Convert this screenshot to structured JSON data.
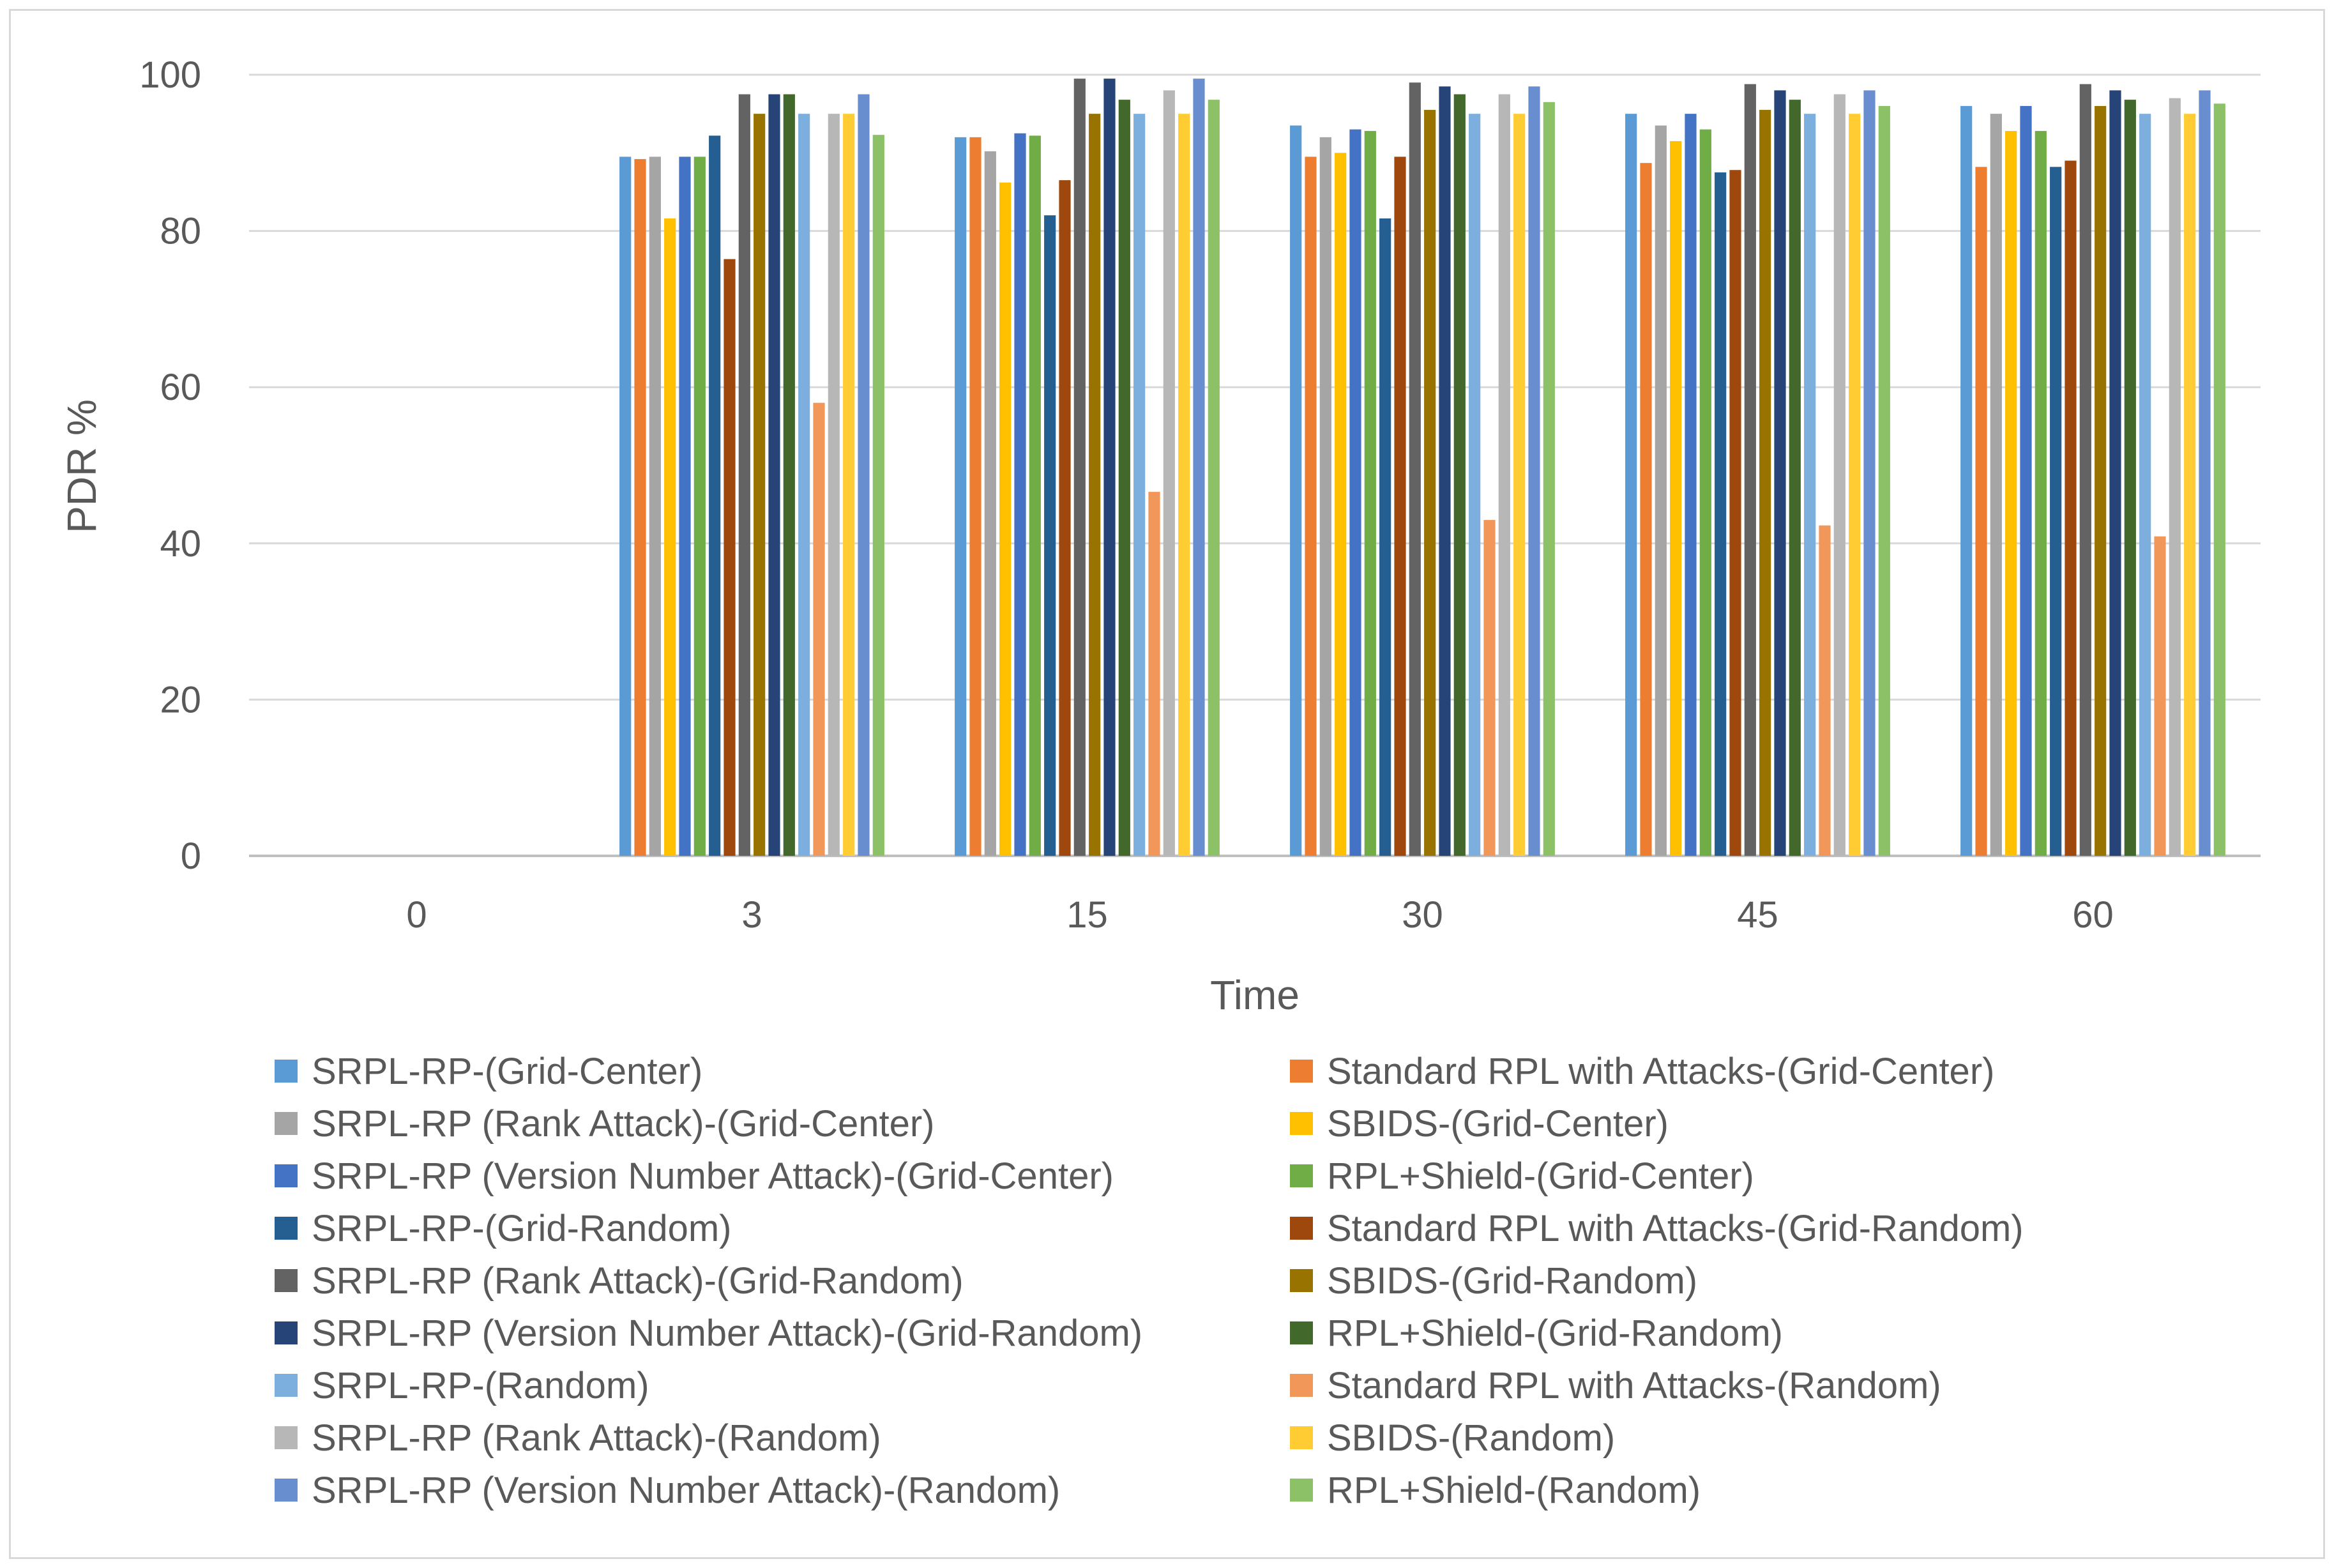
{
  "chart_data": {
    "type": "bar",
    "title": "",
    "xlabel": "Time",
    "ylabel": "PDR %",
    "ylim": [
      0,
      100
    ],
    "yticks": [
      0,
      20,
      40,
      60,
      80,
      100
    ],
    "categories": [
      "0",
      "3",
      "15",
      "30",
      "45",
      "60"
    ],
    "legend_position": "bottom",
    "grid": true,
    "series": [
      {
        "name": "SRPL-RP-(Grid-Center)",
        "color": "#5b9bd5",
        "values": [
          0,
          89.5,
          92,
          93.5,
          95,
          96
        ]
      },
      {
        "name": "Standard RPL with Attacks-(Grid-Center)",
        "color": "#ed7d31",
        "values": [
          0,
          89.2,
          92,
          89.5,
          88.7,
          88.2
        ]
      },
      {
        "name": "SRPL-RP (Rank Attack)-(Grid-Center)",
        "color": "#a5a5a5",
        "values": [
          0,
          89.5,
          90.2,
          92,
          93.5,
          95
        ]
      },
      {
        "name": "SBIDS-(Grid-Center)",
        "color": "#ffc000",
        "values": [
          0,
          81.6,
          86.2,
          90,
          91.5,
          92.8
        ]
      },
      {
        "name": "SRPL-RP (Version Number Attack)-(Grid-Center)",
        "color": "#4472c4",
        "values": [
          0,
          89.5,
          92.5,
          93,
          95,
          96
        ]
      },
      {
        "name": "RPL+Shield-(Grid-Center)",
        "color": "#70ad47",
        "values": [
          0,
          89.5,
          92.2,
          92.8,
          93,
          92.8
        ]
      },
      {
        "name": "SRPL-RP-(Grid-Random)",
        "color": "#255e91",
        "values": [
          0,
          92.2,
          82,
          81.6,
          87.5,
          88.2
        ]
      },
      {
        "name": "Standard RPL with Attacks-(Grid-Random)",
        "color": "#9e480e",
        "values": [
          0,
          76.4,
          86.5,
          89.5,
          87.8,
          89
        ]
      },
      {
        "name": "SRPL-RP (Rank Attack)-(Grid-Random)",
        "color": "#636363",
        "values": [
          0,
          97.5,
          99.5,
          99,
          98.8,
          98.8
        ]
      },
      {
        "name": "SBIDS-(Grid-Random)",
        "color": "#997300",
        "values": [
          0,
          95,
          95,
          95.5,
          95.5,
          96
        ]
      },
      {
        "name": "SRPL-RP (Version Number Attack)-(Grid-Random)",
        "color": "#264478",
        "values": [
          0,
          97.5,
          99.5,
          98.5,
          98,
          98
        ]
      },
      {
        "name": "RPL+Shield-(Grid-Random)",
        "color": "#43682b",
        "values": [
          0,
          97.5,
          96.8,
          97.5,
          96.8,
          96.8
        ]
      },
      {
        "name": "SRPL-RP-(Random)",
        "color": "#7cafdd",
        "values": [
          0,
          95,
          95,
          95,
          95,
          95
        ]
      },
      {
        "name": "Standard RPL with Attacks-(Random)",
        "color": "#f1975a",
        "values": [
          0,
          58,
          46.6,
          43,
          42.3,
          40.9
        ]
      },
      {
        "name": "SRPL-RP (Rank Attack)-(Random)",
        "color": "#b7b7b7",
        "values": [
          0,
          95,
          98,
          97.5,
          97.5,
          97
        ]
      },
      {
        "name": "SBIDS-(Random)",
        "color": "#ffcd33",
        "values": [
          0,
          95,
          95,
          95,
          95,
          95
        ]
      },
      {
        "name": "SRPL-RP (Version Number Attack)-(Random)",
        "color": "#698ed0",
        "values": [
          0,
          97.5,
          99.5,
          98.5,
          98,
          98
        ]
      },
      {
        "name": "RPL+Shield-(Random)",
        "color": "#8cc168",
        "values": [
          0,
          92.3,
          96.8,
          96.5,
          96,
          96.3
        ]
      }
    ]
  }
}
